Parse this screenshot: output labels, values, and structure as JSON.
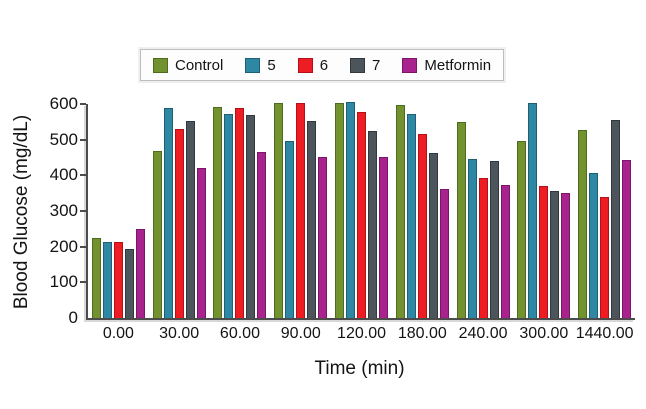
{
  "chart_data": {
    "type": "bar",
    "title": "",
    "xlabel": "Time (min)",
    "ylabel": "Blood Glucose (mg/dL)",
    "ylim": [
      0,
      600
    ],
    "yticks": [
      0,
      100,
      200,
      300,
      400,
      500,
      600
    ],
    "grid": false,
    "legend_position": "top",
    "categories": [
      "0.00",
      "30.00",
      "60.00",
      "90.00",
      "120.00",
      "180.00",
      "240.00",
      "300.00",
      "1440.00"
    ],
    "series": [
      {
        "name": "Control",
        "color": "#72912f",
        "border_color": "#4f6b1e",
        "values": [
          225,
          467,
          593,
          602,
          603,
          598,
          550,
          497,
          527
        ]
      },
      {
        "name": "5",
        "color": "#2e87a3",
        "border_color": "#1d6076",
        "values": [
          213,
          588,
          571,
          497,
          605,
          572,
          445,
          603,
          407
        ]
      },
      {
        "name": "6",
        "color": "#ee1c23",
        "border_color": "#b21117",
        "values": [
          213,
          529,
          589,
          604,
          579,
          515,
          394,
          370,
          340
        ]
      },
      {
        "name": "7",
        "color": "#4d555c",
        "border_color": "#33383d",
        "values": [
          195,
          553,
          568,
          553,
          525,
          463,
          440,
          356,
          555
        ]
      },
      {
        "name": "Metformin",
        "color": "#a9238f",
        "border_color": "#7b1568",
        "values": [
          251,
          422,
          466,
          452,
          452,
          363,
          372,
          351,
          442
        ]
      }
    ]
  }
}
